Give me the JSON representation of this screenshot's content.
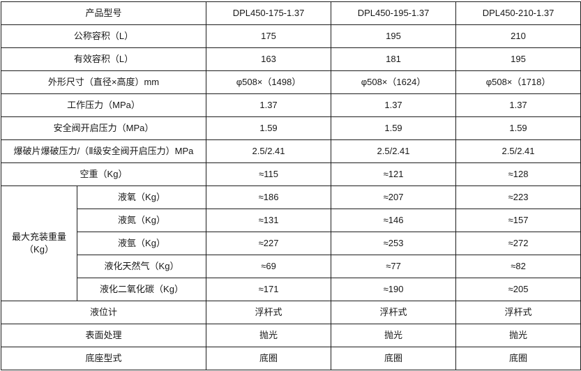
{
  "table": {
    "header": {
      "label": "产品型号",
      "models": [
        "DPL450-175-1.37",
        "DPL450-195-1.37",
        "DPL450-210-1.37"
      ]
    },
    "rows": [
      {
        "label": "公称容积（L）",
        "values": [
          "175",
          "195",
          "210"
        ]
      },
      {
        "label": "有效容积（L）",
        "values": [
          "163",
          "181",
          "195"
        ]
      },
      {
        "label": "外形尺寸（直径×高度）mm",
        "values": [
          "φ508×（1498）",
          "φ508×（1624）",
          "φ508×（1718）"
        ]
      },
      {
        "label": "工作压力（MPa）",
        "values": [
          "1.37",
          "1.37",
          "1.37"
        ]
      },
      {
        "label": "安全阀开启压力（MPa）",
        "values": [
          "1.59",
          "1.59",
          "1.59"
        ]
      },
      {
        "label": "爆破片爆破压力/（Ⅱ级安全阀开启压力）MPa",
        "values": [
          "2.5/2.41",
          "2.5/2.41",
          "2.5/2.41"
        ]
      },
      {
        "label": "空重（Kg）",
        "values": [
          "≈115",
          "≈121",
          "≈128"
        ]
      }
    ],
    "max_filling": {
      "group_label": "最大充装重量（Kg）",
      "rows": [
        {
          "label": "液氧（Kg）",
          "values": [
            "≈186",
            "≈207",
            "≈223"
          ]
        },
        {
          "label": "液氮（Kg）",
          "values": [
            "≈131",
            "≈146",
            "≈157"
          ]
        },
        {
          "label": "液氩（Kg）",
          "values": [
            "≈227",
            "≈253",
            "≈272"
          ]
        },
        {
          "label": "液化天然气（Kg）",
          "values": [
            "≈69",
            "≈77",
            "≈82"
          ]
        },
        {
          "label": "液化二氧化碳（Kg）",
          "values": [
            "≈171",
            "≈190",
            "≈205"
          ]
        }
      ]
    },
    "footer_rows": [
      {
        "label": "液位计",
        "values": [
          "浮杆式",
          "浮杆式",
          "浮杆式"
        ]
      },
      {
        "label": "表面处理",
        "values": [
          "抛光",
          "抛光",
          "抛光"
        ]
      },
      {
        "label": "底座型式",
        "values": [
          "底圈",
          "底圈",
          "底圈"
        ]
      }
    ]
  }
}
